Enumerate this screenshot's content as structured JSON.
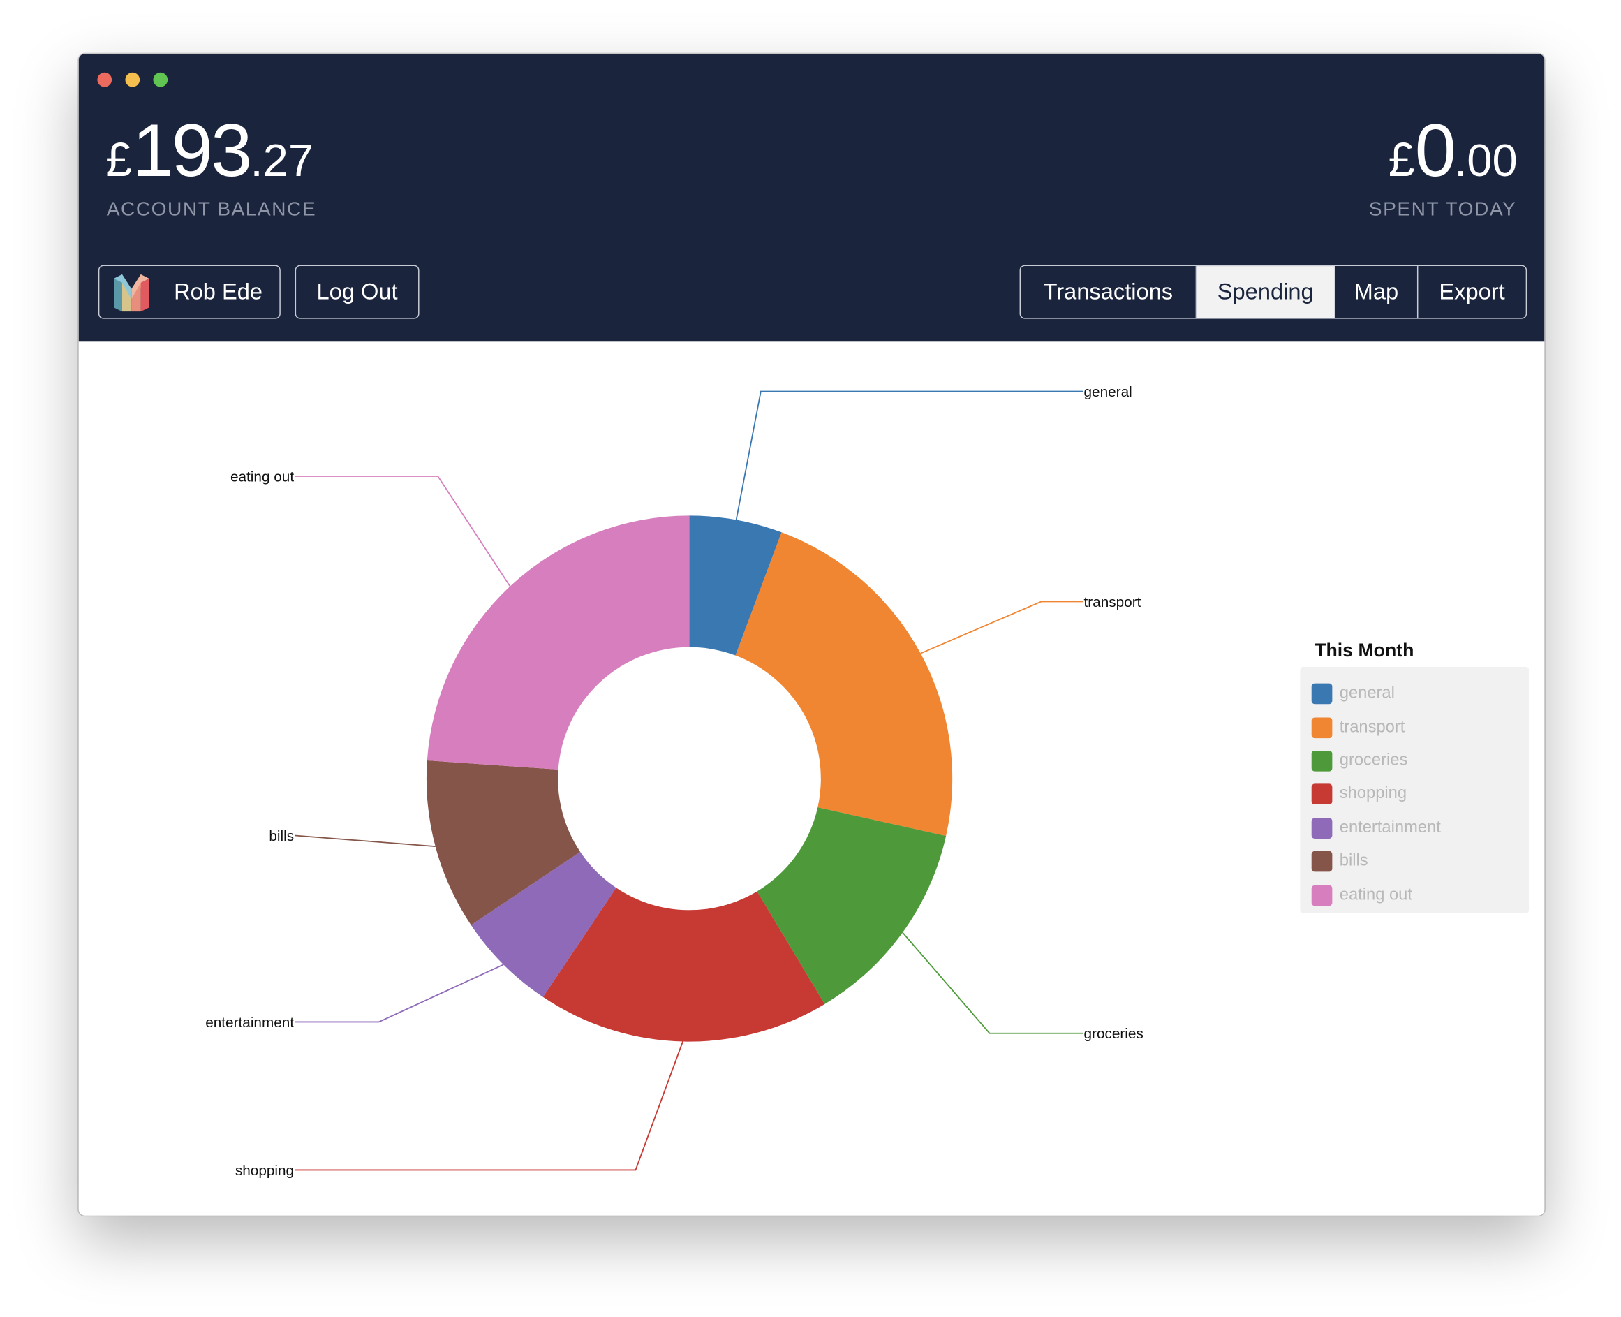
{
  "window": {
    "controls": [
      "close",
      "minimize",
      "maximize"
    ]
  },
  "account": {
    "balance": {
      "currency": "£",
      "whole": "193",
      "fraction": ".27"
    },
    "balance_caption": "ACCOUNT BALANCE",
    "spent": {
      "currency": "£",
      "whole": "0",
      "fraction": ".00"
    },
    "spent_caption": "SPENT TODAY"
  },
  "user": {
    "name": "Rob Ede",
    "logout_label": "Log Out",
    "logo_icon": "monzo-logo-icon"
  },
  "tabs": [
    {
      "label": "Transactions",
      "active": false
    },
    {
      "label": "Spending",
      "active": true
    },
    {
      "label": "Map",
      "active": false
    },
    {
      "label": "Export",
      "active": false
    }
  ],
  "legend": {
    "title": "This Month",
    "items": [
      {
        "label": "general",
        "color": "#3a78b2"
      },
      {
        "label": "transport",
        "color": "#f08532"
      },
      {
        "label": "groceries",
        "color": "#4e9a3b"
      },
      {
        "label": "shopping",
        "color": "#c73933"
      },
      {
        "label": "entertainment",
        "color": "#8e6ab8"
      },
      {
        "label": "bills",
        "color": "#865549"
      },
      {
        "label": "eating out",
        "color": "#d77fbe"
      }
    ]
  },
  "chart_data": {
    "type": "pie",
    "variant": "donut",
    "title": "This Month",
    "categories": [
      "general",
      "transport",
      "groceries",
      "shopping",
      "entertainment",
      "bills",
      "eating out"
    ],
    "values": [
      5.7,
      22.8,
      12.9,
      18.0,
      6.2,
      10.5,
      23.9
    ],
    "unit": "%",
    "colors": [
      "#3a78b2",
      "#f08532",
      "#4e9a3b",
      "#c73933",
      "#8e6ab8",
      "#865549",
      "#d77fbe"
    ],
    "legend": "top-right"
  }
}
